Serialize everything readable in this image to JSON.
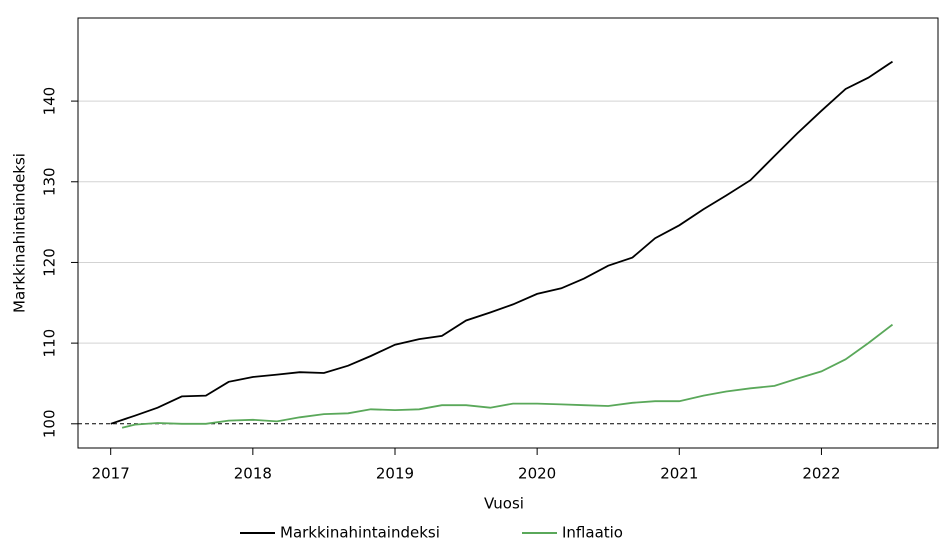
{
  "chart_data": {
    "type": "line",
    "x_label": "Vuosi",
    "y_label": "Markkinahintaindeksi",
    "xlim": [
      2016.77,
      2022.82
    ],
    "xticks": [
      2017,
      2018,
      2019,
      2020,
      2021,
      2022
    ],
    "ylim": [
      97,
      150.3
    ],
    "yticks": [
      100,
      110,
      120,
      130,
      140
    ],
    "grid": true,
    "grid_color": "#d3d3d3",
    "reference_line": 100,
    "legend": "bottom",
    "series": [
      {
        "name": "Markkinahintaindeksi",
        "color": "#000000",
        "x": [
          2017.0,
          2017.17,
          2017.33,
          2017.5,
          2017.67,
          2017.83,
          2018.0,
          2018.17,
          2018.33,
          2018.5,
          2018.67,
          2018.83,
          2019.0,
          2019.17,
          2019.33,
          2019.5,
          2019.67,
          2019.83,
          2020.0,
          2020.17,
          2020.33,
          2020.5,
          2020.67,
          2020.83,
          2021.0,
          2021.17,
          2021.33,
          2021.5,
          2021.67,
          2021.83,
          2022.0,
          2022.17,
          2022.33,
          2022.5
        ],
        "values": [
          100,
          101,
          102,
          103.4,
          103.5,
          105.2,
          105.8,
          106.1,
          106.4,
          106.3,
          107.2,
          108.4,
          109.8,
          110.5,
          110.9,
          112.8,
          113.8,
          114.8,
          116.1,
          116.8,
          118.0,
          119.6,
          120.6,
          123,
          124.6,
          126.6,
          128.3,
          130.2,
          133.2,
          136,
          138.8,
          141.5,
          142.9,
          144.9
        ]
      },
      {
        "name": "Inflaatio",
        "color": "#5aa85a",
        "x": [
          2017.08,
          2017.17,
          2017.33,
          2017.5,
          2017.67,
          2017.83,
          2018.0,
          2018.17,
          2018.33,
          2018.5,
          2018.67,
          2018.83,
          2019.0,
          2019.17,
          2019.33,
          2019.5,
          2019.67,
          2019.83,
          2020.0,
          2020.17,
          2020.33,
          2020.5,
          2020.67,
          2020.83,
          2021.0,
          2021.17,
          2021.33,
          2021.5,
          2021.67,
          2021.83,
          2022.0,
          2022.17,
          2022.33,
          2022.5
        ],
        "values": [
          99.5,
          99.9,
          100.1,
          100.0,
          100.0,
          100.4,
          100.5,
          100.3,
          100.8,
          101.2,
          101.3,
          101.8,
          101.7,
          101.8,
          102.3,
          102.3,
          102.0,
          102.5,
          102.5,
          102.4,
          102.3,
          102.2,
          102.6,
          102.8,
          102.8,
          103.5,
          104.0,
          104.4,
          104.7,
          105.6,
          106.5,
          108.0,
          110.0,
          112.3
        ]
      }
    ]
  }
}
